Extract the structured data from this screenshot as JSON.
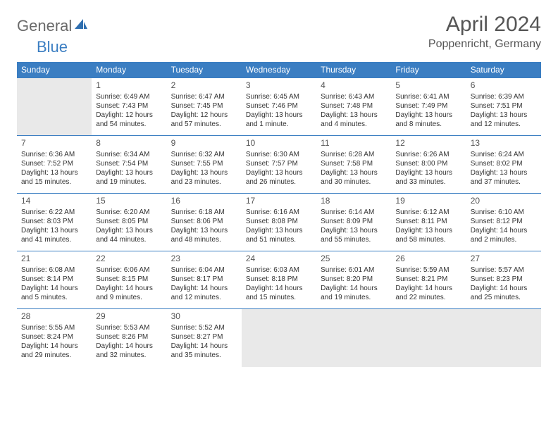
{
  "brand": {
    "general": "General",
    "blue": "Blue"
  },
  "title": "April 2024",
  "location": "Poppenricht, Germany",
  "colors": {
    "header_bg": "#3b7ec2",
    "header_text": "#ffffff",
    "cell_border": "#3b7ec2",
    "blank_bg": "#e9e9e9",
    "text": "#333333",
    "title_text": "#555555"
  },
  "dayHeaders": [
    "Sunday",
    "Monday",
    "Tuesday",
    "Wednesday",
    "Thursday",
    "Friday",
    "Saturday"
  ],
  "weeks": [
    [
      null,
      {
        "n": "1",
        "sr": "6:49 AM",
        "ss": "7:43 PM",
        "dl": "12 hours and 54 minutes."
      },
      {
        "n": "2",
        "sr": "6:47 AM",
        "ss": "7:45 PM",
        "dl": "12 hours and 57 minutes."
      },
      {
        "n": "3",
        "sr": "6:45 AM",
        "ss": "7:46 PM",
        "dl": "13 hours and 1 minute."
      },
      {
        "n": "4",
        "sr": "6:43 AM",
        "ss": "7:48 PM",
        "dl": "13 hours and 4 minutes."
      },
      {
        "n": "5",
        "sr": "6:41 AM",
        "ss": "7:49 PM",
        "dl": "13 hours and 8 minutes."
      },
      {
        "n": "6",
        "sr": "6:39 AM",
        "ss": "7:51 PM",
        "dl": "13 hours and 12 minutes."
      }
    ],
    [
      {
        "n": "7",
        "sr": "6:36 AM",
        "ss": "7:52 PM",
        "dl": "13 hours and 15 minutes."
      },
      {
        "n": "8",
        "sr": "6:34 AM",
        "ss": "7:54 PM",
        "dl": "13 hours and 19 minutes."
      },
      {
        "n": "9",
        "sr": "6:32 AM",
        "ss": "7:55 PM",
        "dl": "13 hours and 23 minutes."
      },
      {
        "n": "10",
        "sr": "6:30 AM",
        "ss": "7:57 PM",
        "dl": "13 hours and 26 minutes."
      },
      {
        "n": "11",
        "sr": "6:28 AM",
        "ss": "7:58 PM",
        "dl": "13 hours and 30 minutes."
      },
      {
        "n": "12",
        "sr": "6:26 AM",
        "ss": "8:00 PM",
        "dl": "13 hours and 33 minutes."
      },
      {
        "n": "13",
        "sr": "6:24 AM",
        "ss": "8:02 PM",
        "dl": "13 hours and 37 minutes."
      }
    ],
    [
      {
        "n": "14",
        "sr": "6:22 AM",
        "ss": "8:03 PM",
        "dl": "13 hours and 41 minutes."
      },
      {
        "n": "15",
        "sr": "6:20 AM",
        "ss": "8:05 PM",
        "dl": "13 hours and 44 minutes."
      },
      {
        "n": "16",
        "sr": "6:18 AM",
        "ss": "8:06 PM",
        "dl": "13 hours and 48 minutes."
      },
      {
        "n": "17",
        "sr": "6:16 AM",
        "ss": "8:08 PM",
        "dl": "13 hours and 51 minutes."
      },
      {
        "n": "18",
        "sr": "6:14 AM",
        "ss": "8:09 PM",
        "dl": "13 hours and 55 minutes."
      },
      {
        "n": "19",
        "sr": "6:12 AM",
        "ss": "8:11 PM",
        "dl": "13 hours and 58 minutes."
      },
      {
        "n": "20",
        "sr": "6:10 AM",
        "ss": "8:12 PM",
        "dl": "14 hours and 2 minutes."
      }
    ],
    [
      {
        "n": "21",
        "sr": "6:08 AM",
        "ss": "8:14 PM",
        "dl": "14 hours and 5 minutes."
      },
      {
        "n": "22",
        "sr": "6:06 AM",
        "ss": "8:15 PM",
        "dl": "14 hours and 9 minutes."
      },
      {
        "n": "23",
        "sr": "6:04 AM",
        "ss": "8:17 PM",
        "dl": "14 hours and 12 minutes."
      },
      {
        "n": "24",
        "sr": "6:03 AM",
        "ss": "8:18 PM",
        "dl": "14 hours and 15 minutes."
      },
      {
        "n": "25",
        "sr": "6:01 AM",
        "ss": "8:20 PM",
        "dl": "14 hours and 19 minutes."
      },
      {
        "n": "26",
        "sr": "5:59 AM",
        "ss": "8:21 PM",
        "dl": "14 hours and 22 minutes."
      },
      {
        "n": "27",
        "sr": "5:57 AM",
        "ss": "8:23 PM",
        "dl": "14 hours and 25 minutes."
      }
    ],
    [
      {
        "n": "28",
        "sr": "5:55 AM",
        "ss": "8:24 PM",
        "dl": "14 hours and 29 minutes."
      },
      {
        "n": "29",
        "sr": "5:53 AM",
        "ss": "8:26 PM",
        "dl": "14 hours and 32 minutes."
      },
      {
        "n": "30",
        "sr": "5:52 AM",
        "ss": "8:27 PM",
        "dl": "14 hours and 35 minutes."
      },
      null,
      null,
      null,
      null
    ]
  ],
  "labels": {
    "sunrise": "Sunrise:",
    "sunset": "Sunset:",
    "daylight": "Daylight:"
  }
}
